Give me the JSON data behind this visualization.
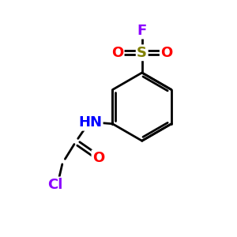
{
  "bg_color": "#ffffff",
  "atom_colors": {
    "F": "#8b00ff",
    "S": "#808000",
    "O": "#ff0000",
    "N": "#0000ff",
    "Cl": "#8b00ff",
    "C": "#000000"
  },
  "bond_color": "#000000",
  "bond_width": 2.0,
  "font_size_atoms": 13
}
